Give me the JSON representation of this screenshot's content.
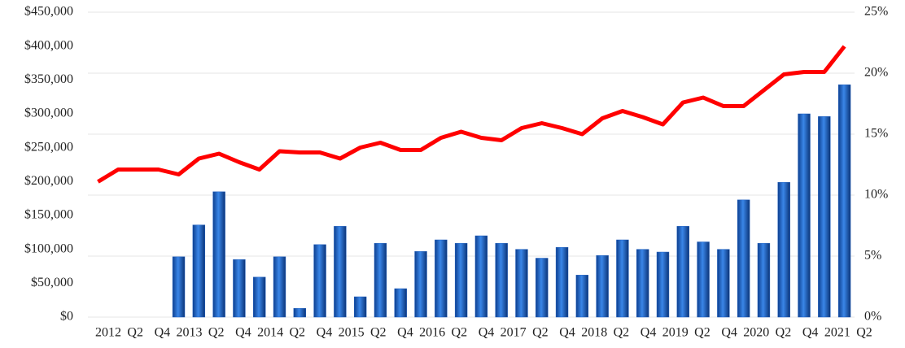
{
  "chart_data": {
    "type": "bar_line",
    "x_labels": [
      "2012",
      "Q2",
      "Q4",
      "2013",
      "Q2",
      "Q4",
      "2014",
      "Q2",
      "Q4",
      "2015",
      "Q2",
      "Q4",
      "2016",
      "Q2",
      "Q4",
      "2017",
      "Q2",
      "Q4",
      "2018",
      "Q2",
      "Q4",
      "2019",
      "Q2",
      "Q4",
      "2020",
      "Q2",
      "Q4",
      "2021",
      "Q2"
    ],
    "series": [
      {
        "type": "bar",
        "color": "#1f5fbf",
        "values": [
          null,
          null,
          null,
          null,
          89000,
          136000,
          185000,
          85000,
          59000,
          89000,
          13000,
          107000,
          134000,
          30000,
          109000,
          42000,
          97000,
          114000,
          109000,
          120000,
          109000,
          100000,
          87000,
          103000,
          62000,
          91000,
          114000,
          100000,
          96000,
          134000,
          111000,
          100000,
          173000,
          109000,
          199000,
          300000,
          296000,
          343000
        ]
      },
      {
        "type": "line",
        "axis": "y2",
        "color": "#ff0000",
        "values": [
          11.1,
          12.1,
          12.1,
          12.1,
          11.7,
          13.0,
          13.4,
          12.7,
          12.1,
          13.6,
          13.5,
          13.5,
          13.0,
          13.9,
          14.3,
          13.7,
          13.7,
          14.7,
          15.2,
          14.7,
          14.5,
          15.5,
          15.9,
          15.5,
          15.0,
          16.3,
          16.9,
          16.4,
          15.8,
          17.6,
          18.0,
          17.3,
          17.3,
          18.6,
          19.9,
          20.1,
          20.1,
          22.2
        ]
      }
    ],
    "ylim": [
      0,
      450000
    ],
    "yticks": [
      {
        "value": 0,
        "label": "$0"
      },
      {
        "value": 50000,
        "label": "$50,000"
      },
      {
        "value": 100000,
        "label": "$100,000"
      },
      {
        "value": 150000,
        "label": "$150,000"
      },
      {
        "value": 200000,
        "label": "$200,000"
      },
      {
        "value": 250000,
        "label": "$250,000"
      },
      {
        "value": 300000,
        "label": "$300,000"
      },
      {
        "value": 350000,
        "label": "$350,000"
      },
      {
        "value": 400000,
        "label": "$400,000"
      },
      {
        "value": 450000,
        "label": "$450,000"
      }
    ],
    "y2lim": [
      0,
      25
    ],
    "y2ticks": [
      {
        "value": 0,
        "label": "0%"
      },
      {
        "value": 5,
        "label": "5%"
      },
      {
        "value": 10,
        "label": "10%"
      },
      {
        "value": 15,
        "label": "15%"
      },
      {
        "value": 20,
        "label": "20%"
      },
      {
        "value": 25,
        "label": "25%"
      }
    ],
    "grid": true
  }
}
